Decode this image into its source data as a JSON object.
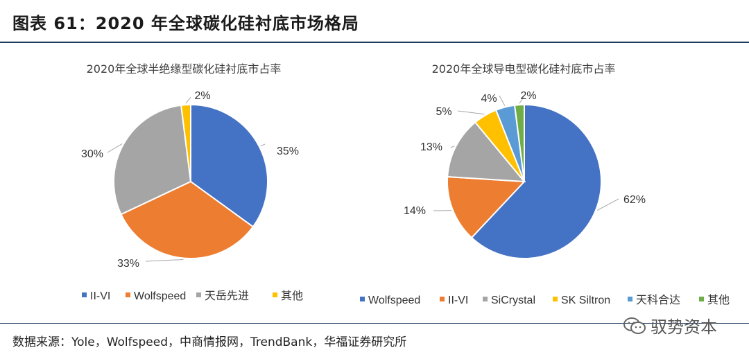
{
  "figure": {
    "title": "图表 61：2020 年全球碳化硅衬底市场格局",
    "source": "数据来源：Yole，Wolfspeed，中商情报网，TrendBank，华福证券研究所",
    "watermark": "驭势资本"
  },
  "chart_data": [
    {
      "type": "pie",
      "title": "2020年全球半绝缘型碳化硅衬底市占率",
      "start_angle_deg": 0,
      "direction": "clockwise",
      "legend_position": "bottom",
      "slices": [
        {
          "label": "II-VI",
          "value": 35,
          "display": "35%",
          "color": "#4472C4"
        },
        {
          "label": "Wolfspeed",
          "value": 33,
          "display": "33%",
          "color": "#ED7D31"
        },
        {
          "label": "天岳先进",
          "value": 30,
          "display": "30%",
          "color": "#A5A5A5"
        },
        {
          "label": "其他",
          "value": 2,
          "display": "2%",
          "color": "#FFC000"
        }
      ]
    },
    {
      "type": "pie",
      "title": "2020年全球导电型碳化硅衬底市占率",
      "start_angle_deg": 0,
      "direction": "clockwise",
      "legend_position": "bottom",
      "slices": [
        {
          "label": "Wolfspeed",
          "value": 62,
          "display": "62%",
          "color": "#4472C4"
        },
        {
          "label": "II-VI",
          "value": 14,
          "display": "14%",
          "color": "#ED7D31"
        },
        {
          "label": "SiCrystal",
          "value": 13,
          "display": "13%",
          "color": "#A5A5A5"
        },
        {
          "label": "SK Siltron",
          "value": 5,
          "display": "5%",
          "color": "#FFC000"
        },
        {
          "label": "天科合达",
          "value": 4,
          "display": "4%",
          "color": "#5B9BD5"
        },
        {
          "label": "其他",
          "value": 2,
          "display": "2%",
          "color": "#70AD47"
        }
      ]
    }
  ]
}
